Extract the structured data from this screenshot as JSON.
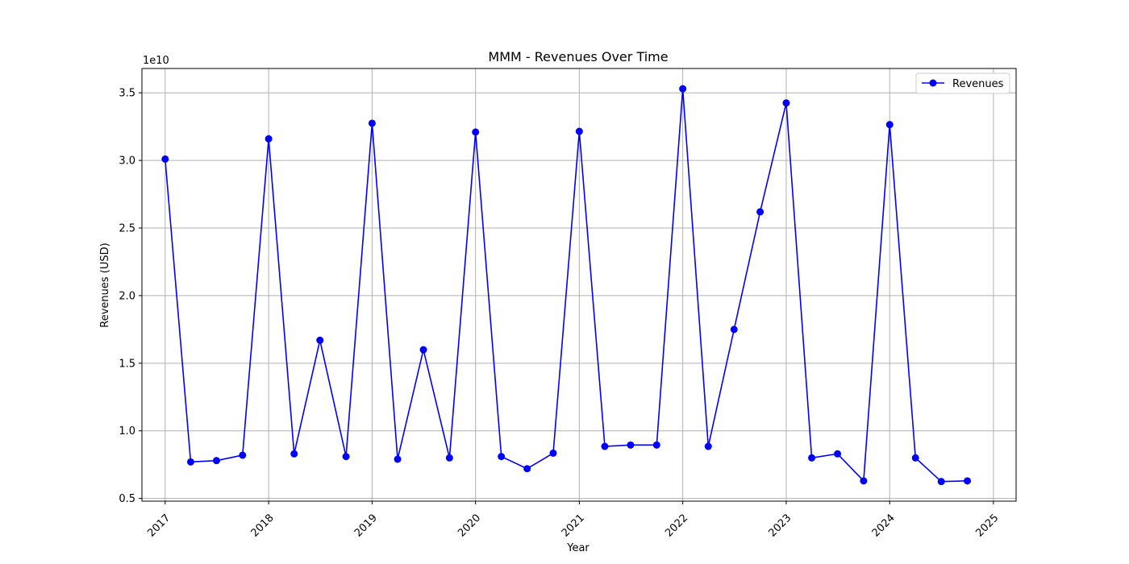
{
  "chart_data": {
    "type": "line",
    "title": "MMM - Revenues Over Time",
    "xlabel": "Year",
    "ylabel": "Revenues (USD)",
    "y_offset_label": "1e10",
    "y_scale_exponent": 10,
    "xlim": [
      "2016-10-11",
      "2025-03-22"
    ],
    "ylim": [
      4800000000.0,
      36800000000.0
    ],
    "x_ticks": [
      {
        "date": "2017-01-01",
        "label": "2017"
      },
      {
        "date": "2018-01-01",
        "label": "2018"
      },
      {
        "date": "2019-01-01",
        "label": "2019"
      },
      {
        "date": "2020-01-01",
        "label": "2020"
      },
      {
        "date": "2021-01-01",
        "label": "2021"
      },
      {
        "date": "2022-01-01",
        "label": "2022"
      },
      {
        "date": "2023-01-01",
        "label": "2023"
      },
      {
        "date": "2024-01-01",
        "label": "2024"
      },
      {
        "date": "2025-01-01",
        "label": "2025"
      }
    ],
    "y_ticks": [
      {
        "value": 5000000000.0,
        "label": "0.5"
      },
      {
        "value": 10000000000.0,
        "label": "1.0"
      },
      {
        "value": 15000000000.0,
        "label": "1.5"
      },
      {
        "value": 20000000000.0,
        "label": "2.0"
      },
      {
        "value": 25000000000.0,
        "label": "2.5"
      },
      {
        "value": 30000000000.0,
        "label": "3.0"
      },
      {
        "value": 35000000000.0,
        "label": "3.5"
      }
    ],
    "grid": true,
    "legend_position": "top-right",
    "series": [
      {
        "name": "Revenues",
        "color": "#0000ff",
        "marker": "circle",
        "points": [
          {
            "x": "2017-01-01",
            "y": 30100000000.0
          },
          {
            "x": "2017-04-01",
            "y": 7700000000.0
          },
          {
            "x": "2017-07-01",
            "y": 7800000000.0
          },
          {
            "x": "2017-10-01",
            "y": 8200000000.0
          },
          {
            "x": "2018-01-01",
            "y": 31600000000.0
          },
          {
            "x": "2018-04-01",
            "y": 8300000000.0
          },
          {
            "x": "2018-07-01",
            "y": 16700000000.0
          },
          {
            "x": "2018-10-01",
            "y": 8100000000.0
          },
          {
            "x": "2019-01-01",
            "y": 32750000000.0
          },
          {
            "x": "2019-04-01",
            "y": 7900000000.0
          },
          {
            "x": "2019-07-01",
            "y": 16000000000.0
          },
          {
            "x": "2019-10-01",
            "y": 8000000000.0
          },
          {
            "x": "2020-01-01",
            "y": 32100000000.0
          },
          {
            "x": "2020-04-01",
            "y": 8100000000.0
          },
          {
            "x": "2020-07-01",
            "y": 7200000000.0
          },
          {
            "x": "2020-10-01",
            "y": 8350000000.0
          },
          {
            "x": "2021-01-01",
            "y": 32150000000.0
          },
          {
            "x": "2021-04-01",
            "y": 8850000000.0
          },
          {
            "x": "2021-07-01",
            "y": 8950000000.0
          },
          {
            "x": "2021-10-01",
            "y": 8950000000.0
          },
          {
            "x": "2022-01-01",
            "y": 35300000000.0
          },
          {
            "x": "2022-04-01",
            "y": 8850000000.0
          },
          {
            "x": "2022-07-01",
            "y": 17500000000.0
          },
          {
            "x": "2022-10-01",
            "y": 26200000000.0
          },
          {
            "x": "2023-01-01",
            "y": 34250000000.0
          },
          {
            "x": "2023-04-01",
            "y": 8000000000.0
          },
          {
            "x": "2023-07-01",
            "y": 8300000000.0
          },
          {
            "x": "2023-10-01",
            "y": 6300000000.0
          },
          {
            "x": "2024-01-01",
            "y": 32650000000.0
          },
          {
            "x": "2024-04-01",
            "y": 8000000000.0
          },
          {
            "x": "2024-07-01",
            "y": 6250000000.0
          },
          {
            "x": "2024-10-01",
            "y": 6300000000.0
          }
        ]
      }
    ]
  }
}
